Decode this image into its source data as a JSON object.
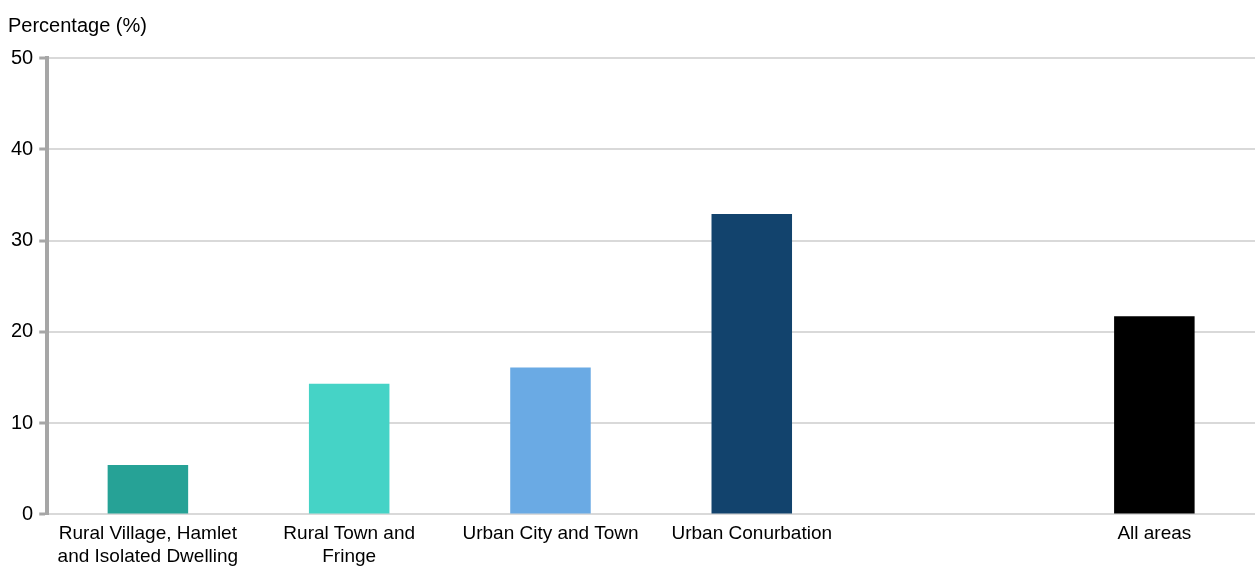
{
  "chart_data": {
    "type": "bar",
    "ylabel": "Percentage (%)",
    "categories": [
      "Rural Village, Hamlet and Isolated Dwelling",
      "Rural Town and Fringe",
      "Urban City and Town",
      "Urban Conurbation",
      null,
      "All areas"
    ],
    "values": [
      5.4,
      14.3,
      16.1,
      32.9,
      null,
      21.7
    ],
    "colors": [
      "#26a296",
      "#45d3c6",
      "#6aaae4",
      "#12436d",
      "#ffffff",
      "#000000"
    ],
    "ylim": [
      0,
      50
    ],
    "yticks": [
      0,
      10,
      20,
      30,
      40,
      50
    ],
    "grid": "y"
  }
}
